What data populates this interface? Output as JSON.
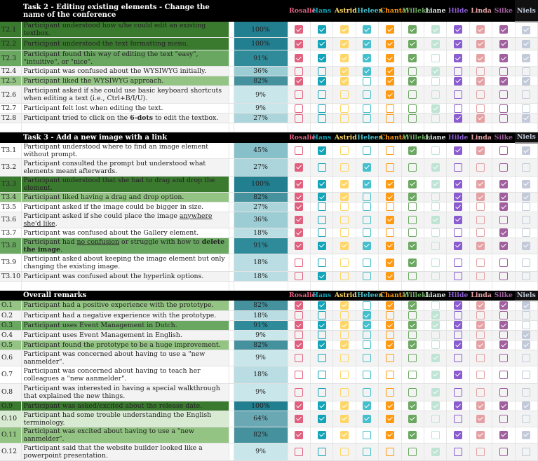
{
  "participants": [
    {
      "name": "Rosalie",
      "color": "#e0607e"
    },
    {
      "name": "Hans",
      "color": "#12a4b8"
    },
    {
      "name": "Astrid",
      "color": "#ffd666"
    },
    {
      "name": "Heleen",
      "color": "#46bfcc"
    },
    {
      "name": "Chantal",
      "color": "#ff9a12"
    },
    {
      "name": "Willeke",
      "color": "#6aa860"
    },
    {
      "name": "Liane",
      "color": "#bfe3d4"
    },
    {
      "name": "Hilde",
      "color": "#8a5ccf"
    },
    {
      "name": "Linda",
      "color": "#e4a0a3"
    },
    {
      "name": "Silke",
      "color": "#a0609e"
    },
    {
      "name": "Niels",
      "color": "#c2cada"
    }
  ],
  "sections": [
    {
      "title": "Task 2 - Editing existing elements - Change the name of the conference",
      "rows": [
        {
          "id": "T2.1",
          "parts": [
            {
              "t": "Participant understood how s/he could edit an existing textbox."
            }
          ],
          "pct": "100%",
          "checks": "11111111111"
        },
        {
          "id": "T2.2",
          "parts": [
            {
              "t": "Participant understood the text formatting menu."
            }
          ],
          "pct": "100%",
          "checks": "11111111111"
        },
        {
          "id": "T2.3",
          "parts": [
            {
              "t": "Participant found this way of editing the text \"easy\", \"intuitive\", or \"nice\"."
            }
          ],
          "pct": "91%",
          "checks": "11111101111"
        },
        {
          "id": "T2.4",
          "parts": [
            {
              "t": "Participant was confused about the WYSIWYG initially."
            }
          ],
          "pct": "36%",
          "checks": "00111010000"
        },
        {
          "id": "T2.5",
          "parts": [
            {
              "t": "Participant liked the WYSIWYG approach."
            }
          ],
          "pct": "82%",
          "checks": "11101101111"
        },
        {
          "id": "T2.6",
          "parts": [
            {
              "t": "Participant asked if she could use basic keyboard shortcuts when editing a text (i.e., Ctrl+B/I/U)."
            }
          ],
          "pct": "9%",
          "checks": "00001000000"
        },
        {
          "id": "T2.7",
          "parts": [
            {
              "t": "Participant felt lost when editing the text."
            }
          ],
          "pct": "9%",
          "checks": "00000010000"
        },
        {
          "id": "T2.8",
          "parts": [
            {
              "t": "Participant tried to click on the "
            },
            {
              "t": "6-dots",
              "b": true
            },
            {
              "t": " to edit the textbox."
            }
          ],
          "pct": "27%",
          "checks": "00000001101"
        }
      ]
    },
    {
      "title": "Task 3 - Add a new image with a link",
      "rows": [
        {
          "id": "T3.1",
          "parts": [
            {
              "t": "Participant understood where to find an image element without prompt."
            }
          ],
          "pct": "45%",
          "checks": "01000101101"
        },
        {
          "id": "T3.2",
          "parts": [
            {
              "t": "Participant consulted the prompt but understood what elements meant afterwards."
            }
          ],
          "pct": "27%",
          "checks": "10010010000"
        },
        {
          "id": "T3.3",
          "parts": [
            {
              "t": "Participant understood that she had to drag and drop the element."
            }
          ],
          "pct": "100%",
          "checks": "11111111111"
        },
        {
          "id": "T3.4",
          "parts": [
            {
              "t": "Participant liked having a drag and drop option."
            }
          ],
          "pct": "82%",
          "checks": "11101101111"
        },
        {
          "id": "T3.5",
          "parts": [
            {
              "t": "Participant asked if the image could be bigger in size."
            }
          ],
          "pct": "27%",
          "checks": "10000001010"
        },
        {
          "id": "T3.6",
          "parts": [
            {
              "t": "Participant asked if she could place the image "
            },
            {
              "t": "anywhere she'd like",
              "u": true
            },
            {
              "t": "."
            }
          ],
          "pct": "36%",
          "checks": "10001011000"
        },
        {
          "id": "T3.7",
          "parts": [
            {
              "t": "Participant was confused about the Gallery element."
            }
          ],
          "pct": "18%",
          "checks": "10000000010"
        },
        {
          "id": "T3.8",
          "parts": [
            {
              "t": "Participant had "
            },
            {
              "t": "no confusion",
              "u": true
            },
            {
              "t": " or struggle with how to "
            },
            {
              "t": "delete the image",
              "b": true
            },
            {
              "t": "."
            }
          ],
          "pct": "91%",
          "checks": "11111101111"
        },
        {
          "id": "T3.9",
          "parts": [
            {
              "t": "Participant asked about keeping the image element but only changing the existing image."
            }
          ],
          "pct": "18%",
          "checks": "00001100000"
        },
        {
          "id": "T3.10",
          "parts": [
            {
              "t": "Participant was confused about the hyperlink options."
            }
          ],
          "pct": "18%",
          "checks": "01001000000"
        }
      ]
    },
    {
      "title": "Overall remarks",
      "rows": [
        {
          "id": "O.1",
          "parts": [
            {
              "t": "Participant had a positive experience with the prototype."
            }
          ],
          "pct": "82%",
          "checks": "11101101111"
        },
        {
          "id": "O.2",
          "parts": [
            {
              "t": "Participant had a negative experience with the prototype."
            }
          ],
          "pct": "18%",
          "checks": "00010010000"
        },
        {
          "id": "O.3",
          "parts": [
            {
              "t": "Participant uses Event Management in Dutch."
            }
          ],
          "pct": "91%",
          "checks": "11111111110"
        },
        {
          "id": "O.4",
          "parts": [
            {
              "t": "Participant uses Event Management in English."
            }
          ],
          "pct": "9%",
          "checks": "00000000001"
        },
        {
          "id": "O.5",
          "parts": [
            {
              "t": "Participant found the prototype to be a huge improvement."
            }
          ],
          "pct": "82%",
          "checks": "11101101111"
        },
        {
          "id": "O.6",
          "parts": [
            {
              "t": "Participant was concerned about having to use a \"new aanmelder\"."
            }
          ],
          "pct": "9%",
          "checks": "00000010000"
        },
        {
          "id": "O.7",
          "parts": [
            {
              "t": "Participant was concerned about having to teach her colleagues a \"new aanmelder\"."
            }
          ],
          "pct": "18%",
          "checks": "00000011000"
        },
        {
          "id": "O.8",
          "parts": [
            {
              "t": "Participant was interested in having a special walkthrough that explained the new things."
            }
          ],
          "pct": "9%",
          "checks": "00000010000"
        },
        {
          "id": "O.9",
          "parts": [
            {
              "t": "Participant was asked/excited about the release date."
            }
          ],
          "pct": "100%",
          "checks": "11111111111"
        },
        {
          "id": "O.10",
          "parts": [
            {
              "t": "Participant had some trouble understanding the English terminology."
            }
          ],
          "pct": "64%",
          "checks": "11111100100"
        },
        {
          "id": "O.11",
          "parts": [
            {
              "t": "Participant was excited about having to use a \"new aanmelder\"."
            }
          ],
          "pct": "82%",
          "checks": "11101101111"
        },
        {
          "id": "O.12",
          "parts": [
            {
              "t": "Participant said that the website builder looked like a powerpoint presentation."
            }
          ],
          "pct": "9%",
          "checks": "00000010000"
        }
      ]
    }
  ]
}
